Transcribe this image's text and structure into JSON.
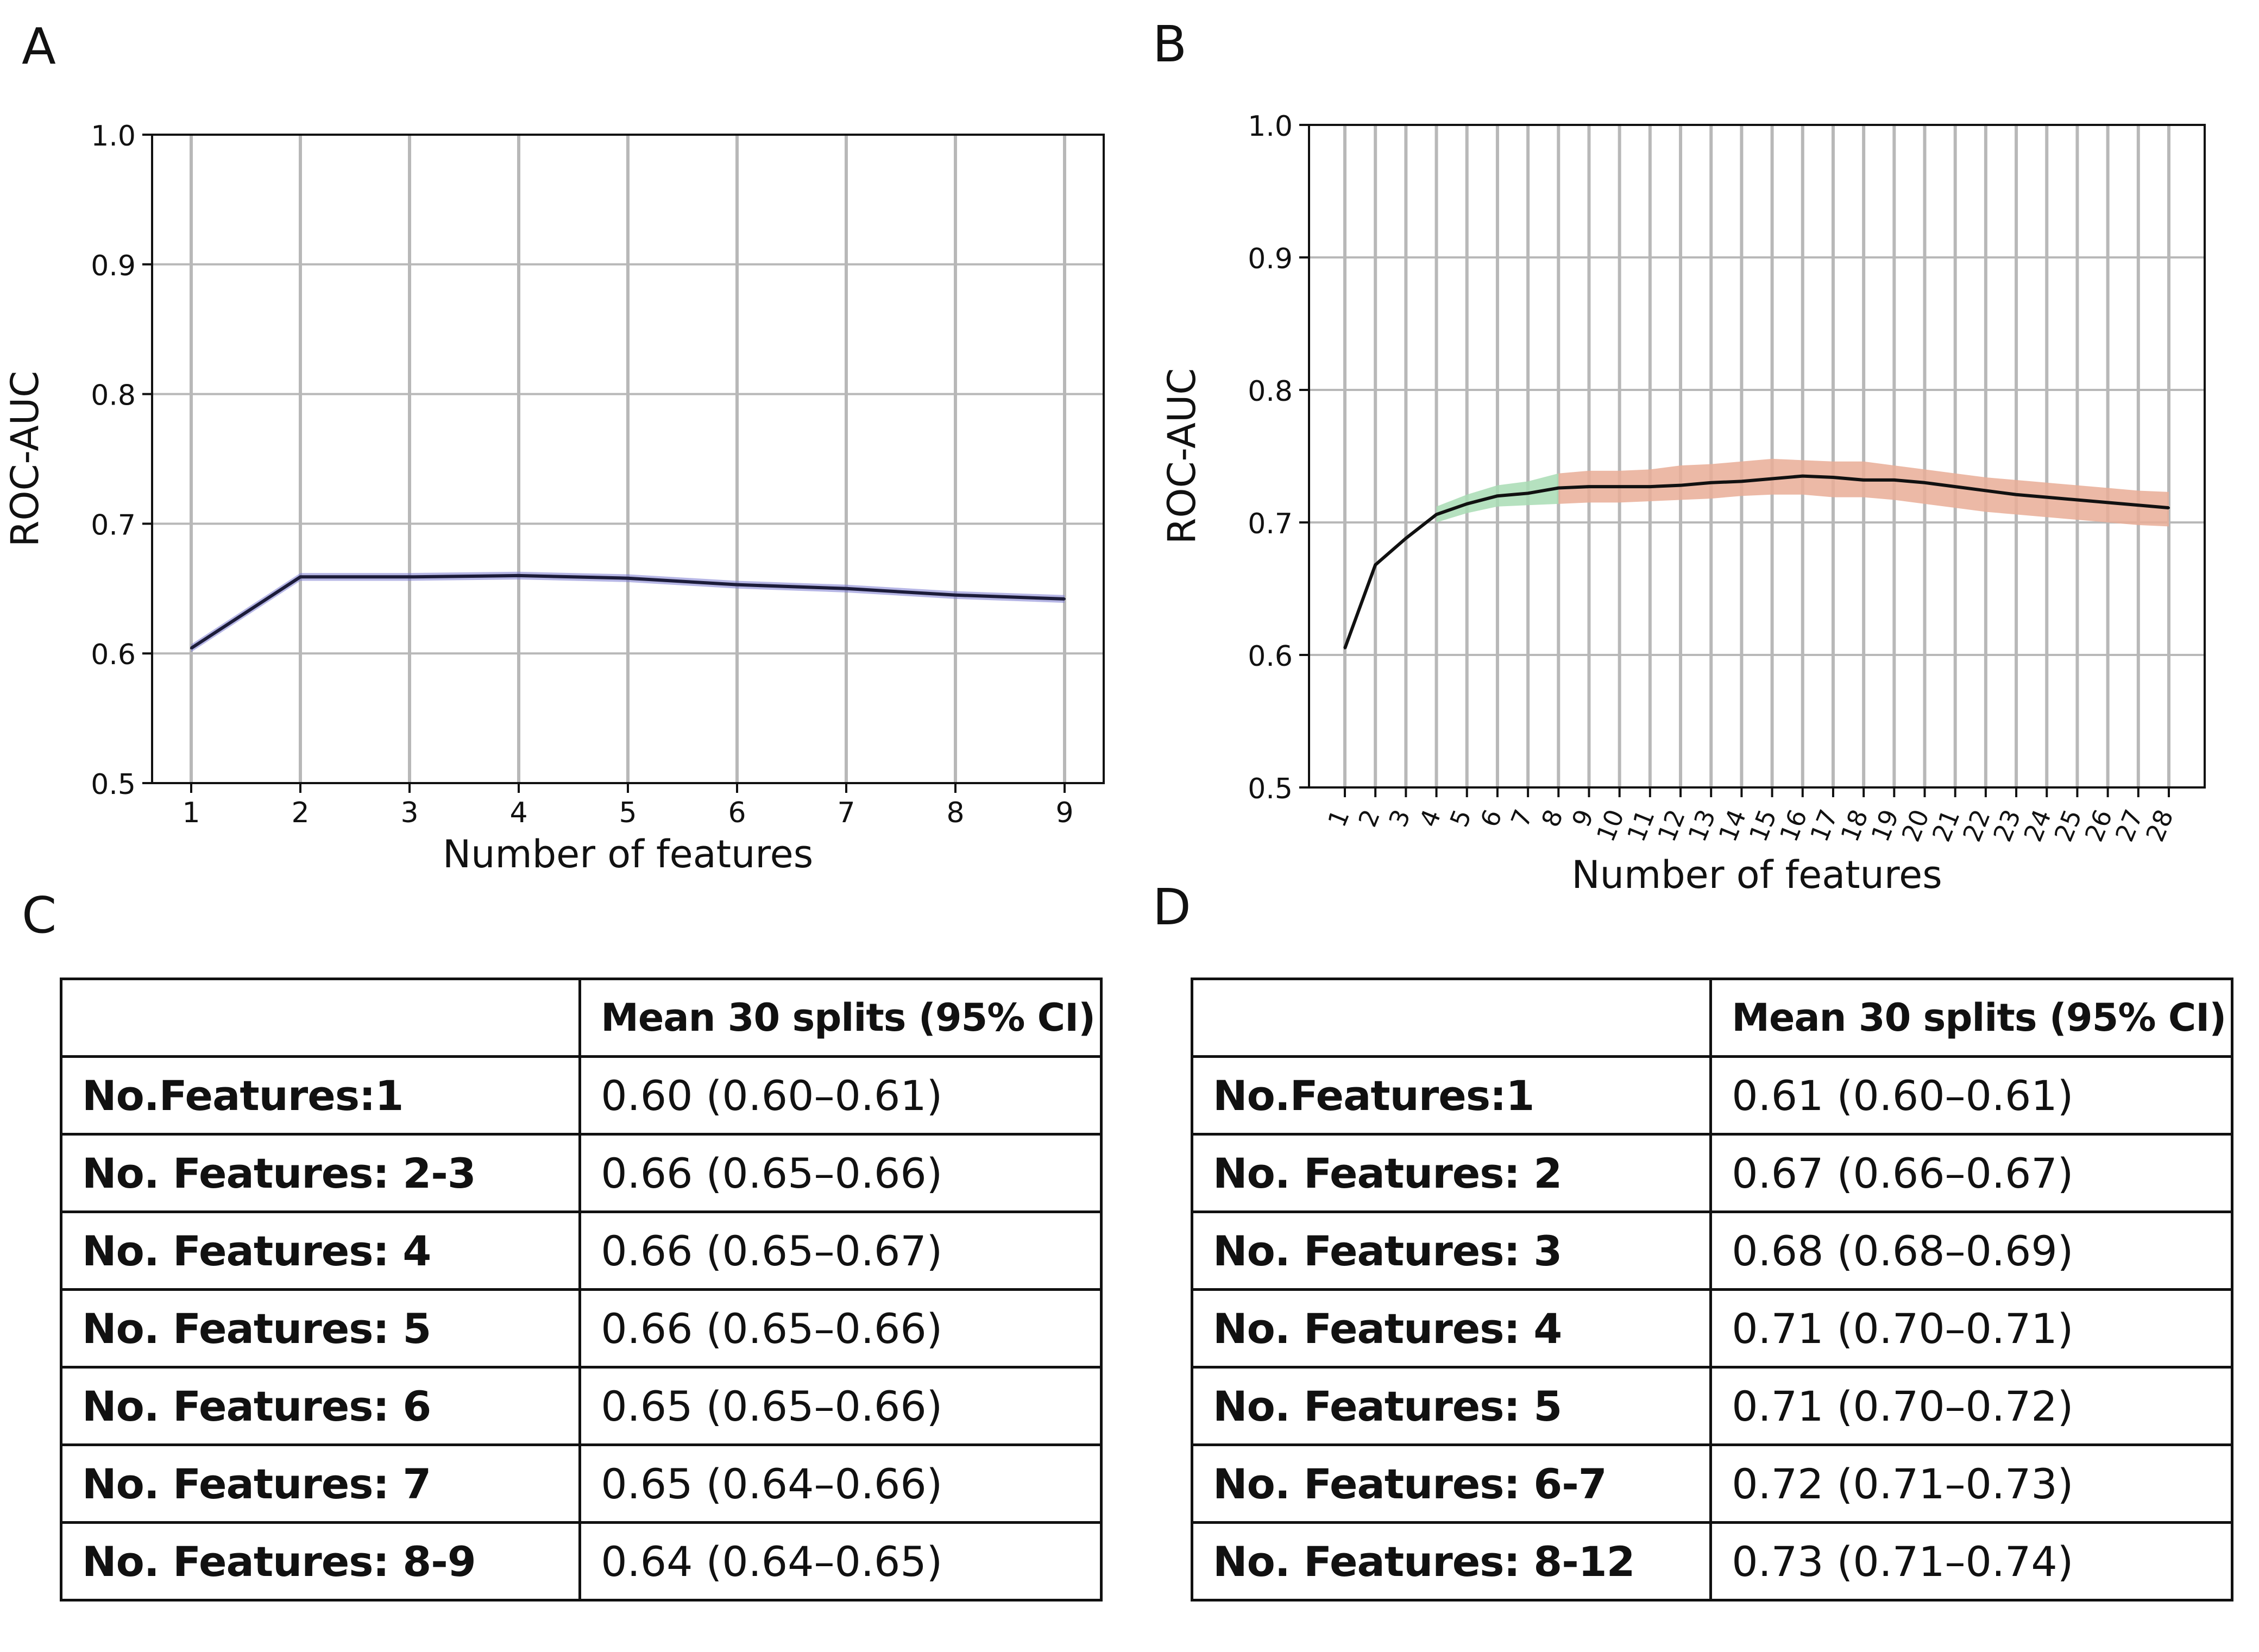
{
  "panels": {
    "A": {
      "letter": "A",
      "chart_data": {
        "type": "line",
        "xlabel": "Number of features",
        "ylabel": "ROC-AUC",
        "ylim": [
          0.5,
          1.0
        ],
        "yticks": [
          "0.5",
          "0.6",
          "0.7",
          "0.8",
          "0.9",
          "1.0"
        ],
        "x": [
          1,
          2,
          3,
          4,
          5,
          6,
          7,
          8,
          9
        ],
        "series": [
          {
            "name": "mean",
            "color": "#1c1c3a",
            "values": [
              0.604,
              0.659,
              0.659,
              0.66,
              0.658,
              0.653,
              0.65,
              0.645,
              0.642
            ],
            "band": {
              "color": "#7a7ad0",
              "lower": [
                0.601,
                0.656,
                0.656,
                0.657,
                0.655,
                0.65,
                0.647,
                0.642,
                0.639
              ],
              "upper": [
                0.607,
                0.662,
                0.662,
                0.663,
                0.661,
                0.656,
                0.653,
                0.648,
                0.645
              ]
            }
          }
        ],
        "grid": true
      }
    },
    "B": {
      "letter": "B",
      "chart_data": {
        "type": "line",
        "xlabel": "Number of features",
        "ylabel": "ROC-AUC",
        "ylim": [
          0.5,
          1.0
        ],
        "yticks": [
          "0.5",
          "0.6",
          "0.7",
          "0.8",
          "0.9",
          "1.0"
        ],
        "x": [
          1,
          2,
          3,
          4,
          5,
          6,
          7,
          8,
          9,
          10,
          11,
          12,
          13,
          14,
          15,
          16,
          17,
          18,
          19,
          20,
          21,
          22,
          23,
          24,
          25,
          26,
          27,
          28
        ],
        "series": [
          {
            "name": "mean",
            "color": "#111111",
            "values": [
              0.605,
              0.668,
              0.688,
              0.706,
              0.714,
              0.72,
              0.722,
              0.726,
              0.727,
              0.727,
              0.727,
              0.728,
              0.73,
              0.731,
              0.733,
              0.735,
              0.734,
              0.732,
              0.732,
              0.73,
              0.727,
              0.724,
              0.721,
              0.719,
              0.717,
              0.715,
              0.713,
              0.711
            ]
          }
        ],
        "bands": [
          {
            "color": "#a8dcb4",
            "from_x": 4,
            "to_x": 8,
            "lower": [
              0.7,
              0.707,
              0.712,
              0.713,
              0.714
            ],
            "upper": [
              0.712,
              0.721,
              0.728,
              0.731,
              0.737
            ]
          },
          {
            "color": "#e9ad96",
            "from_x": 8,
            "to_x": 28,
            "lower": [
              0.714,
              0.715,
              0.715,
              0.716,
              0.717,
              0.718,
              0.72,
              0.721,
              0.721,
              0.719,
              0.719,
              0.717,
              0.714,
              0.711,
              0.708,
              0.706,
              0.704,
              0.702,
              0.7,
              0.698,
              0.697
            ],
            "upper": [
              0.737,
              0.739,
              0.739,
              0.74,
              0.743,
              0.744,
              0.746,
              0.748,
              0.747,
              0.746,
              0.746,
              0.743,
              0.74,
              0.737,
              0.734,
              0.732,
              0.73,
              0.728,
              0.726,
              0.724,
              0.723
            ]
          }
        ],
        "grid": true
      }
    },
    "C": {
      "letter": "C",
      "header": [
        "",
        "Mean 30 splits (95% CI)"
      ],
      "rows": [
        [
          "No.Features:1",
          "0.60 (0.60–0.61)"
        ],
        [
          "No. Features: 2-3",
          "0.66 (0.65–0.66)"
        ],
        [
          "No. Features: 4",
          "0.66 (0.65–0.67)"
        ],
        [
          "No. Features: 5",
          "0.66 (0.65–0.66)"
        ],
        [
          "No. Features: 6",
          "0.65 (0.65–0.66)"
        ],
        [
          "No. Features: 7",
          "0.65 (0.64–0.66)"
        ],
        [
          "No. Features: 8-9",
          "0.64 (0.64–0.65)"
        ]
      ]
    },
    "D": {
      "letter": "D",
      "header": [
        "",
        "Mean 30 splits (95% CI)"
      ],
      "rows": [
        [
          "No.Features:1",
          "0.61 (0.60–0.61)"
        ],
        [
          "No. Features: 2",
          "0.67 (0.66–0.67)"
        ],
        [
          "No. Features: 3",
          "0.68 (0.68–0.69)"
        ],
        [
          "No. Features: 4",
          "0.71 (0.70–0.71)"
        ],
        [
          "No. Features: 5",
          "0.71 (0.70–0.72)"
        ],
        [
          "No. Features: 6-7",
          "0.72 (0.71–0.73)"
        ],
        [
          "No. Features: 8-12",
          "0.73 (0.71–0.74)"
        ]
      ]
    }
  }
}
